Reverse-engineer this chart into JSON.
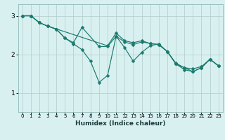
{
  "xlabel": "Humidex (Indice chaleur)",
  "bg_color": "#d9f0f0",
  "line_color": "#1a7a6e",
  "grid_color": "#b0cccc",
  "xlim": [
    -0.5,
    23.5
  ],
  "ylim": [
    0.5,
    3.3
  ],
  "yticks": [
    1,
    2,
    3
  ],
  "xticks": [
    0,
    1,
    2,
    3,
    4,
    5,
    6,
    7,
    8,
    9,
    10,
    11,
    12,
    13,
    14,
    15,
    16,
    17,
    18,
    19,
    20,
    21,
    22,
    23
  ],
  "line1_x": [
    0,
    1,
    2,
    3,
    4,
    5,
    6,
    7,
    8,
    9,
    10,
    11,
    12,
    13,
    14,
    15,
    16,
    17,
    18,
    19,
    20,
    21,
    22,
    23
  ],
  "line1_y": [
    3.0,
    3.0,
    2.82,
    2.73,
    2.65,
    2.42,
    2.27,
    2.12,
    1.82,
    1.27,
    1.45,
    2.47,
    2.17,
    1.82,
    2.05,
    2.22,
    2.27,
    2.07,
    1.77,
    1.65,
    1.62,
    1.68,
    1.87,
    1.7
  ],
  "line2_x": [
    0,
    1,
    2,
    3,
    4,
    5,
    6,
    7,
    9,
    10,
    11,
    12,
    13,
    14,
    15,
    16,
    17,
    18,
    19,
    20,
    21,
    22,
    23
  ],
  "line2_y": [
    3.0,
    3.0,
    2.82,
    2.73,
    2.65,
    2.42,
    2.3,
    2.7,
    2.2,
    2.2,
    2.47,
    2.32,
    2.25,
    2.32,
    2.28,
    2.25,
    2.07,
    1.75,
    1.65,
    1.55,
    1.65,
    1.87,
    1.7
  ],
  "line3_x": [
    0,
    1,
    2,
    3,
    10,
    11,
    12,
    13,
    14,
    15,
    16,
    17,
    18,
    19,
    20,
    21,
    22,
    23
  ],
  "line3_y": [
    3.0,
    3.0,
    2.82,
    2.73,
    2.22,
    2.55,
    2.35,
    2.3,
    2.35,
    2.28,
    2.25,
    2.07,
    1.75,
    1.6,
    1.55,
    1.65,
    1.87,
    1.7
  ]
}
